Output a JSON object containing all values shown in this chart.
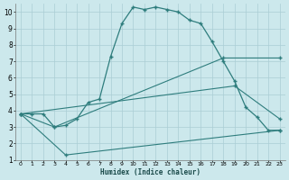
{
  "xlabel": "Humidex (Indice chaleur)",
  "bg_color": "#cce8ec",
  "grid_color": "#aacdd4",
  "line_color": "#2e7d7d",
  "xlim": [
    -0.5,
    23.5
  ],
  "ylim": [
    1,
    10.5
  ],
  "xticks": [
    0,
    1,
    2,
    3,
    4,
    5,
    6,
    7,
    8,
    9,
    10,
    11,
    12,
    13,
    14,
    15,
    16,
    17,
    18,
    19,
    20,
    21,
    22,
    23
  ],
  "yticks": [
    1,
    2,
    3,
    4,
    5,
    6,
    7,
    8,
    9,
    10
  ],
  "line1_x": [
    0,
    1,
    2,
    3,
    4,
    5,
    6,
    7,
    8,
    9,
    10,
    11,
    12,
    13,
    14,
    15,
    16,
    17,
    18,
    19,
    20,
    21,
    22,
    23
  ],
  "line1_y": [
    3.8,
    3.8,
    3.8,
    3.0,
    3.1,
    3.5,
    4.5,
    4.7,
    7.3,
    9.3,
    10.3,
    10.15,
    10.3,
    10.15,
    10.0,
    9.5,
    9.3,
    8.2,
    7.0,
    5.8,
    4.2,
    3.6,
    2.8,
    2.8
  ],
  "line2_x": [
    0,
    3,
    18,
    23
  ],
  "line2_y": [
    3.8,
    3.0,
    7.2,
    7.2
  ],
  "line3_x": [
    0,
    19,
    23
  ],
  "line3_y": [
    3.8,
    5.5,
    3.5
  ],
  "line4_x": [
    0,
    4,
    23
  ],
  "line4_y": [
    3.8,
    1.3,
    2.8
  ]
}
